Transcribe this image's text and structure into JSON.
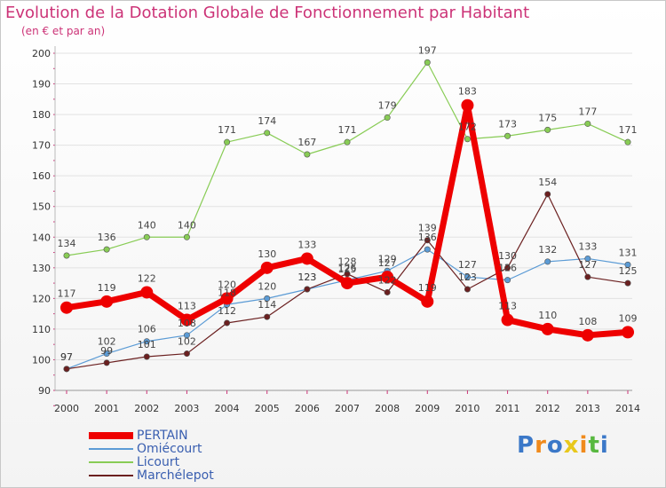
{
  "header": {
    "title": "Evolution de la Dotation Globale de Fonctionnement par Habitant",
    "subtitle": "(en € et par an)"
  },
  "branding": {
    "logo_text": "Proxiti"
  },
  "colors": {
    "title": "#cc3377",
    "legend_text": "#3a5fb0",
    "axis_text": "#333333",
    "grid": "#dddddd"
  },
  "chart_data": {
    "type": "line",
    "title": "Evolution de la Dotation Globale de Fonctionnement par Habitant",
    "subtitle": "(en € et par an)",
    "xlabel": "",
    "ylabel": "",
    "ylim": [
      90,
      200
    ],
    "yticks": [
      90,
      100,
      110,
      120,
      130,
      140,
      150,
      160,
      170,
      180,
      190,
      200
    ],
    "x": [
      "2000",
      "2001",
      "2002",
      "2003",
      "2004",
      "2005",
      "2006",
      "2007",
      "2008",
      "2009",
      "2010",
      "2011",
      "2012",
      "2013",
      "2014"
    ],
    "grid": true,
    "legend_position": "bottom-left",
    "series": [
      {
        "name": "Licourt",
        "color": "#88cc55",
        "values": [
          134,
          136,
          140,
          140,
          171,
          174,
          167,
          171,
          179,
          197,
          172,
          173,
          175,
          177,
          171
        ]
      },
      {
        "name": "Omiécourt",
        "color": "#5b9bd5",
        "values": [
          97,
          102,
          106,
          108,
          118,
          120,
          123,
          126,
          129,
          136,
          127,
          126,
          132,
          133,
          131
        ]
      },
      {
        "name": "Marchélepot",
        "color": "#6b2020",
        "values": [
          97,
          99,
          101,
          102,
          112,
          114,
          123,
          128,
          122,
          139,
          123,
          130,
          154,
          127,
          125
        ]
      },
      {
        "name": "PERTAIN",
        "color": "#ee0000",
        "values": [
          117,
          119,
          122,
          113,
          120,
          130,
          133,
          125,
          127,
          119,
          183,
          113,
          110,
          108,
          109
        ]
      }
    ],
    "data_labels": [
      {
        "series": "Licourt",
        "labels": [
          "134",
          "136",
          "140",
          "140",
          "171",
          "174",
          "167",
          "171",
          "179",
          "197",
          "172",
          "173",
          "175",
          "177",
          "171"
        ]
      },
      {
        "series": "Omiécourt",
        "labels": [
          "97",
          "102",
          "106",
          "108",
          "118",
          "120",
          "123",
          "126",
          "129",
          "136",
          "127",
          "126",
          "132",
          "133",
          "131"
        ]
      },
      {
        "series": "Marchélepot",
        "labels": [
          "97",
          "99",
          "101",
          "102",
          "112",
          "114",
          "123",
          "128",
          "122",
          "139",
          "123",
          "130",
          "154",
          "127",
          "125"
        ]
      },
      {
        "series": "PERTAIN",
        "labels": [
          "117",
          "119",
          "122",
          "113",
          "120",
          "130",
          "133",
          "125",
          "127",
          "119",
          "183",
          "113",
          "110",
          "108",
          "109"
        ]
      }
    ]
  },
  "legend": {
    "items": [
      {
        "label": "PERTAIN",
        "color": "#ee0000"
      },
      {
        "label": "Omiécourt",
        "color": "#5b9bd5"
      },
      {
        "label": "Licourt",
        "color": "#88cc55"
      },
      {
        "label": "Marchélepot",
        "color": "#6b2020"
      }
    ]
  }
}
